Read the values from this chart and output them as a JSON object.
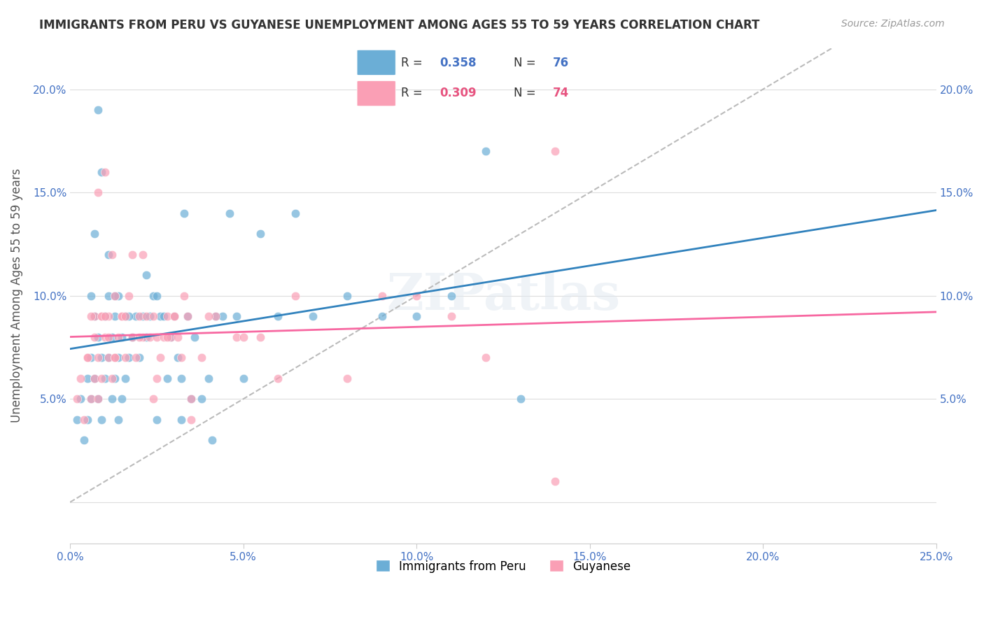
{
  "title": "IMMIGRANTS FROM PERU VS GUYANESE UNEMPLOYMENT AMONG AGES 55 TO 59 YEARS CORRELATION CHART",
  "source": "Source: ZipAtlas.com",
  "xlabel": "",
  "ylabel": "Unemployment Among Ages 55 to 59 years",
  "xlim": [
    0,
    0.25
  ],
  "ylim": [
    -0.02,
    0.22
  ],
  "xticks": [
    0.0,
    0.05,
    0.1,
    0.15,
    0.2,
    0.25
  ],
  "yticks": [
    0.0,
    0.05,
    0.1,
    0.15,
    0.2
  ],
  "xticklabels": [
    "0.0%",
    "5.0%",
    "10.0%",
    "15.0%",
    "20.0%",
    "25.0%"
  ],
  "yticklabels_left": [
    "",
    "5.0%",
    "10.0%",
    "15.0%",
    "20.0%"
  ],
  "yticklabels_right": [
    "",
    "5.0%",
    "10.0%",
    "15.0%",
    "20.0%"
  ],
  "legend_peru_r": "R = 0.358",
  "legend_peru_n": "N = 76",
  "legend_guyanese_r": "R = 0.309",
  "legend_guyanese_n": "N = 74",
  "legend_label_peru": "Immigrants from Peru",
  "legend_label_guyanese": "Guyanese",
  "color_peru": "#6baed6",
  "color_guyanese": "#fa9fb5",
  "color_peru_line": "#3182bd",
  "color_guyanese_line": "#f768a1",
  "color_dashed": "#bbbbbb",
  "watermark": "ZIPatlas",
  "peru_x": [
    0.002,
    0.003,
    0.004,
    0.005,
    0.005,
    0.006,
    0.006,
    0.007,
    0.007,
    0.008,
    0.008,
    0.009,
    0.009,
    0.01,
    0.01,
    0.011,
    0.011,
    0.012,
    0.012,
    0.013,
    0.013,
    0.014,
    0.014,
    0.015,
    0.015,
    0.016,
    0.016,
    0.017,
    0.018,
    0.019,
    0.02,
    0.021,
    0.022,
    0.023,
    0.024,
    0.025,
    0.026,
    0.027,
    0.028,
    0.029,
    0.03,
    0.031,
    0.032,
    0.033,
    0.034,
    0.035,
    0.036,
    0.038,
    0.04,
    0.042,
    0.044,
    0.046,
    0.048,
    0.05,
    0.055,
    0.06,
    0.065,
    0.07,
    0.08,
    0.09,
    0.1,
    0.11,
    0.12,
    0.13,
    0.007,
    0.009,
    0.011,
    0.014,
    0.017,
    0.025,
    0.008,
    0.006,
    0.013,
    0.022,
    0.032,
    0.041
  ],
  "peru_y": [
    0.04,
    0.05,
    0.03,
    0.06,
    0.04,
    0.07,
    0.05,
    0.09,
    0.06,
    0.08,
    0.05,
    0.07,
    0.04,
    0.09,
    0.06,
    0.1,
    0.07,
    0.08,
    0.05,
    0.09,
    0.06,
    0.1,
    0.07,
    0.08,
    0.05,
    0.09,
    0.06,
    0.07,
    0.08,
    0.09,
    0.07,
    0.09,
    0.08,
    0.09,
    0.1,
    0.1,
    0.09,
    0.09,
    0.06,
    0.08,
    0.09,
    0.07,
    0.06,
    0.14,
    0.09,
    0.05,
    0.08,
    0.05,
    0.06,
    0.09,
    0.09,
    0.14,
    0.09,
    0.06,
    0.13,
    0.09,
    0.14,
    0.09,
    0.1,
    0.09,
    0.09,
    0.1,
    0.17,
    0.05,
    0.13,
    0.16,
    0.12,
    0.04,
    0.09,
    0.04,
    0.19,
    0.1,
    0.1,
    0.11,
    0.04,
    0.03
  ],
  "guyanese_x": [
    0.002,
    0.003,
    0.004,
    0.005,
    0.006,
    0.007,
    0.007,
    0.008,
    0.008,
    0.009,
    0.009,
    0.01,
    0.011,
    0.011,
    0.012,
    0.013,
    0.013,
    0.014,
    0.015,
    0.016,
    0.017,
    0.018,
    0.019,
    0.02,
    0.021,
    0.022,
    0.023,
    0.024,
    0.025,
    0.026,
    0.027,
    0.028,
    0.029,
    0.03,
    0.031,
    0.032,
    0.033,
    0.034,
    0.035,
    0.038,
    0.042,
    0.048,
    0.055,
    0.065,
    0.08,
    0.1,
    0.12,
    0.005,
    0.007,
    0.009,
    0.011,
    0.013,
    0.015,
    0.018,
    0.021,
    0.025,
    0.03,
    0.01,
    0.01,
    0.008,
    0.006,
    0.012,
    0.016,
    0.02,
    0.024,
    0.028,
    0.035,
    0.04,
    0.06,
    0.09,
    0.11,
    0.05,
    0.14,
    0.14
  ],
  "guyanese_y": [
    0.05,
    0.06,
    0.04,
    0.07,
    0.05,
    0.08,
    0.06,
    0.07,
    0.05,
    0.09,
    0.06,
    0.08,
    0.07,
    0.09,
    0.06,
    0.1,
    0.07,
    0.08,
    0.09,
    0.07,
    0.1,
    0.08,
    0.07,
    0.09,
    0.08,
    0.09,
    0.08,
    0.09,
    0.08,
    0.07,
    0.08,
    0.09,
    0.08,
    0.09,
    0.08,
    0.07,
    0.1,
    0.09,
    0.05,
    0.07,
    0.09,
    0.08,
    0.08,
    0.1,
    0.06,
    0.1,
    0.07,
    0.07,
    0.09,
    0.09,
    0.08,
    0.07,
    0.09,
    0.12,
    0.12,
    0.06,
    0.09,
    0.16,
    0.09,
    0.15,
    0.09,
    0.12,
    0.09,
    0.08,
    0.05,
    0.08,
    0.04,
    0.09,
    0.06,
    0.1,
    0.09,
    0.08,
    0.17,
    0.01
  ]
}
